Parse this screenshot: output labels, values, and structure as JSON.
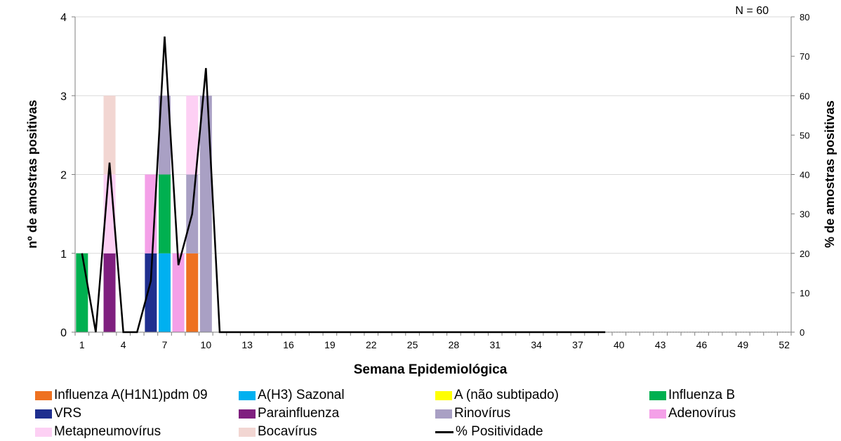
{
  "chart_data": {
    "type": "bar",
    "xlabel": "Semana Epidemiológica",
    "ylabel": "nº de amostras positivas",
    "y2label": "% de amostras positivas",
    "annotation": "N = 60",
    "ylim": [
      0,
      4
    ],
    "y2lim": [
      0,
      80
    ],
    "yticks": [
      0,
      1,
      2,
      3,
      4
    ],
    "y2ticks": [
      0,
      10,
      20,
      30,
      40,
      50,
      60,
      70,
      80
    ],
    "x_tick_labels": [
      1,
      4,
      7,
      10,
      13,
      16,
      19,
      22,
      25,
      28,
      31,
      34,
      37,
      40,
      43,
      46,
      49,
      52
    ],
    "weeks": 52,
    "series": [
      {
        "name": "Influenza A(H1N1)pdm 09",
        "color": "#ee7120",
        "values": {
          "9": 1
        }
      },
      {
        "name": "A(H3) Sazonal",
        "color": "#00b0f0",
        "values": {
          "7": 1
        }
      },
      {
        "name": "A (não subtipado)",
        "color": "#ffff00",
        "values": {}
      },
      {
        "name": "Influenza B",
        "color": "#00b050",
        "values": {
          "1": 1,
          "7": 1
        }
      },
      {
        "name": "VRS",
        "color": "#1f2f8f",
        "values": {
          "6": 1
        }
      },
      {
        "name": "Parainfluenza",
        "color": "#7f1f7f",
        "values": {
          "3": 1
        }
      },
      {
        "name": "Rinovírus",
        "color": "#a9a0c4",
        "values": {
          "7": 1,
          "9": 1,
          "10": 3
        }
      },
      {
        "name": "Adenovírus",
        "color": "#f4a0e8",
        "values": {
          "6": 1,
          "8": 1
        }
      },
      {
        "name": "Metapneumovírus",
        "color": "#fdd0f4",
        "values": {
          "3": 1,
          "9": 1
        }
      },
      {
        "name": "Bocavírus",
        "color": "#f2d6d2",
        "values": {
          "3": 1
        }
      }
    ],
    "line": {
      "name": "% Positividade",
      "color": "#000000",
      "x": [
        1,
        2,
        3,
        4,
        5,
        6,
        7,
        8,
        9,
        10,
        11,
        12,
        13,
        14,
        15,
        16,
        17,
        18,
        19,
        20,
        21,
        22,
        23,
        24,
        25,
        26,
        27,
        28,
        29,
        30,
        31,
        32,
        33,
        34,
        35,
        36,
        37,
        38,
        39
      ],
      "values": [
        20,
        0,
        43,
        0,
        0,
        13,
        75,
        17,
        30,
        67,
        0,
        0,
        0,
        0,
        0,
        0,
        0,
        0,
        0,
        0,
        0,
        0,
        0,
        0,
        0,
        0,
        0,
        0,
        0,
        0,
        0,
        0,
        0,
        0,
        0,
        0,
        0,
        0,
        0
      ]
    },
    "grid": true,
    "legend_position": "bottom"
  }
}
